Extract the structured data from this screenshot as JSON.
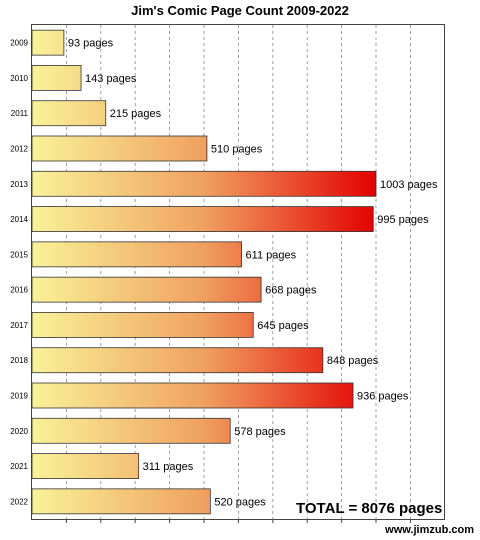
{
  "chart_data": {
    "type": "bar",
    "orientation": "horizontal",
    "title": "Jim's Comic Page Count 2009-2022",
    "categories": [
      "2009",
      "2010",
      "2011",
      "2012",
      "2013",
      "2014",
      "2015",
      "2016",
      "2017",
      "2018",
      "2019",
      "2020",
      "2021",
      "2022"
    ],
    "values": [
      93,
      143,
      215,
      510,
      1003,
      995,
      611,
      668,
      645,
      848,
      936,
      578,
      311,
      520
    ],
    "data_labels": [
      "93 pages",
      "143 pages",
      "215 pages",
      "510 pages",
      "1003 pages",
      "995 pages",
      "611 pages",
      "668 pages",
      "645 pages",
      "848 pages",
      "936 pages",
      "578 pages",
      "311 pages",
      "520 pages"
    ],
    "xlim": [
      0,
      1200
    ],
    "grid": "vertical dashed",
    "colors": {
      "gradient_start": "#f8f298",
      "gradient_mid": "#f0a060",
      "gradient_end": "#e30000",
      "bar_stroke": "#333333"
    },
    "annotations": {
      "total": "TOTAL = 8076 pages",
      "website": "www.jimzub.com"
    }
  }
}
